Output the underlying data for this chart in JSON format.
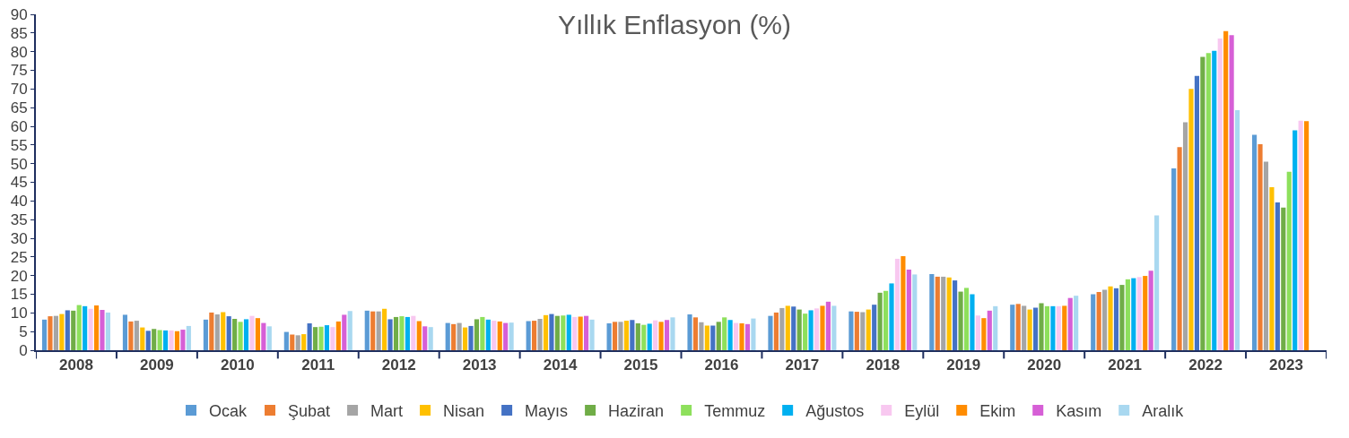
{
  "chart_data": {
    "type": "bar",
    "title": "Yıllık Enflasyon (%)",
    "categories": [
      "2008",
      "2009",
      "2010",
      "2011",
      "2012",
      "2013",
      "2014",
      "2015",
      "2016",
      "2017",
      "2018",
      "2019",
      "2020",
      "2021",
      "2022",
      "2023"
    ],
    "ylim": [
      0,
      90
    ],
    "yticks": [
      0,
      5,
      10,
      15,
      20,
      25,
      30,
      35,
      40,
      45,
      50,
      55,
      60,
      65,
      70,
      75,
      80,
      85,
      90
    ],
    "grid": false,
    "legend": "bottom",
    "series": [
      {
        "name": "Ocak",
        "color": "#5b9bd5",
        "values": [
          8.2,
          9.5,
          8.2,
          4.9,
          10.6,
          7.3,
          7.8,
          7.2,
          9.6,
          9.2,
          10.4,
          20.4,
          12.2,
          15.0,
          48.7,
          57.7
        ]
      },
      {
        "name": "Şubat",
        "color": "#ed7d31",
        "values": [
          9.1,
          7.7,
          10.1,
          4.2,
          10.4,
          7.0,
          7.9,
          7.6,
          8.8,
          10.1,
          10.3,
          19.7,
          12.4,
          15.6,
          54.4,
          55.2
        ]
      },
      {
        "name": "Mart",
        "color": "#a5a5a5",
        "values": [
          9.2,
          7.9,
          9.6,
          4.0,
          10.4,
          7.3,
          8.4,
          7.6,
          7.5,
          11.3,
          10.2,
          19.7,
          11.9,
          16.2,
          61.1,
          50.5
        ]
      },
      {
        "name": "Nisan",
        "color": "#ffc000",
        "values": [
          9.7,
          6.1,
          10.2,
          4.3,
          11.1,
          6.1,
          9.4,
          7.9,
          6.6,
          11.9,
          10.9,
          19.5,
          10.9,
          17.1,
          70.0,
          43.7
        ]
      },
      {
        "name": "Mayıs",
        "color": "#4472c4",
        "values": [
          10.7,
          5.2,
          9.1,
          7.2,
          8.3,
          6.5,
          9.7,
          8.1,
          6.6,
          11.7,
          12.2,
          18.7,
          11.4,
          16.6,
          73.5,
          39.6
        ]
      },
      {
        "name": "Haziran",
        "color": "#70ad47",
        "values": [
          10.6,
          5.7,
          8.4,
          6.2,
          8.9,
          8.3,
          9.2,
          7.2,
          7.6,
          10.9,
          15.4,
          15.7,
          12.6,
          17.5,
          78.6,
          38.2
        ]
      },
      {
        "name": "Temmuz",
        "color": "#8ee05c",
        "values": [
          12.1,
          5.4,
          7.6,
          6.3,
          9.1,
          8.9,
          9.3,
          6.8,
          8.8,
          9.8,
          15.9,
          16.7,
          11.8,
          19.0,
          79.6,
          47.8
        ]
      },
      {
        "name": "Ağustos",
        "color": "#00b0f0",
        "values": [
          11.8,
          5.3,
          8.3,
          6.7,
          8.9,
          8.2,
          9.5,
          7.1,
          8.1,
          10.7,
          17.9,
          15.0,
          11.8,
          19.3,
          80.2,
          58.9
        ]
      },
      {
        "name": "Eylül",
        "color": "#f8c8f0",
        "values": [
          11.1,
          5.3,
          9.2,
          6.2,
          9.2,
          7.9,
          8.9,
          8.0,
          7.3,
          11.2,
          24.5,
          9.3,
          11.8,
          19.6,
          83.5,
          61.5
        ]
      },
      {
        "name": "Ekim",
        "color": "#ff8c00",
        "values": [
          12.0,
          5.1,
          8.6,
          7.7,
          7.8,
          7.7,
          9.0,
          7.6,
          7.2,
          11.9,
          25.2,
          8.6,
          11.9,
          19.9,
          85.5,
          61.4
        ]
      },
      {
        "name": "Kasım",
        "color": "#d65fd6",
        "values": [
          10.8,
          5.5,
          7.3,
          9.5,
          6.4,
          7.3,
          9.2,
          8.1,
          7.0,
          13.0,
          21.6,
          10.6,
          14.0,
          21.3,
          84.4,
          null
        ]
      },
      {
        "name": "Aralık",
        "color": "#a9d8f0",
        "values": [
          10.1,
          6.5,
          6.4,
          10.5,
          6.2,
          7.4,
          8.2,
          8.8,
          8.5,
          11.9,
          20.3,
          11.8,
          14.6,
          36.1,
          64.3,
          null
        ]
      }
    ]
  }
}
